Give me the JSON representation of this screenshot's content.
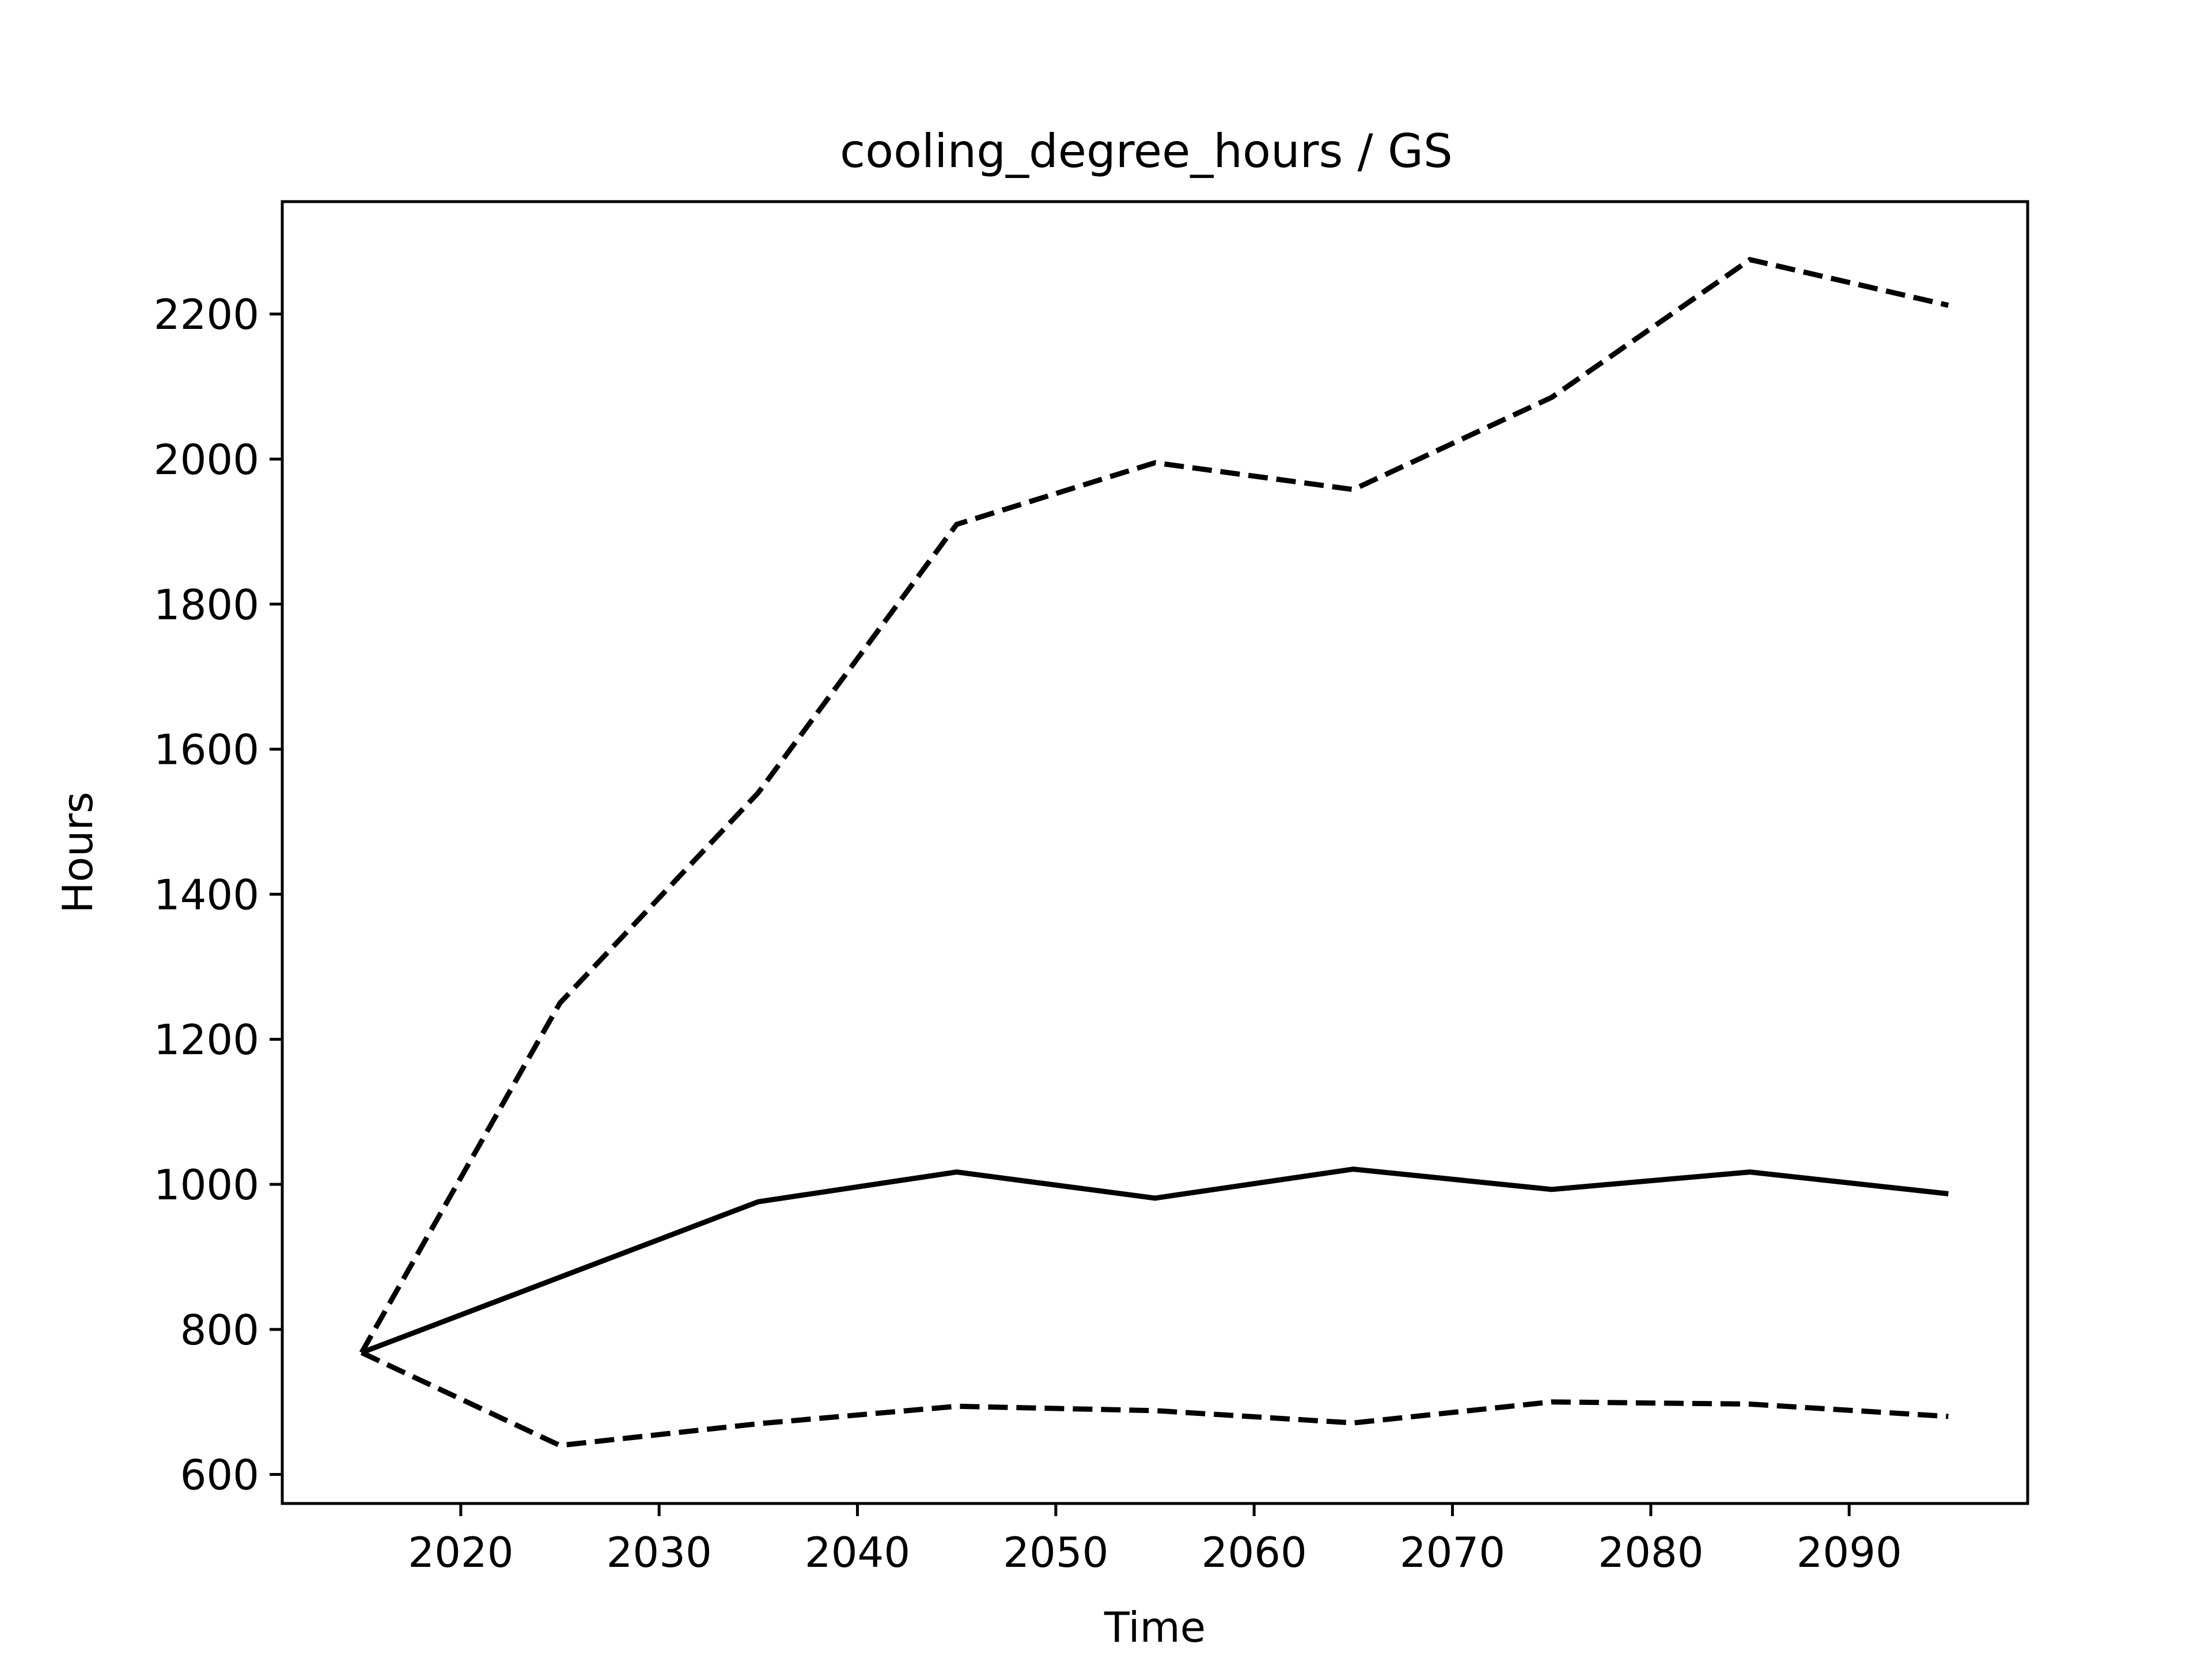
{
  "chart_data": {
    "type": "line",
    "title": "cooling_degree_hours / GS",
    "xlabel": "Time",
    "ylabel": "Hours",
    "xlim": [
      2011,
      2099
    ],
    "ylim": [
      560,
      2355
    ],
    "xticks": [
      2020,
      2030,
      2040,
      2050,
      2060,
      2070,
      2080,
      2090
    ],
    "yticks": [
      600,
      800,
      1000,
      1200,
      1400,
      1600,
      1800,
      2000,
      2200
    ],
    "grid": false,
    "legend": "none",
    "x": [
      2015,
      2025,
      2035,
      2045,
      2055,
      2065,
      2075,
      2085,
      2095
    ],
    "series": [
      {
        "style": "dashed",
        "color": "#000000",
        "values": [
          768,
          1250,
          1540,
          1910,
          1995,
          1958,
          2085,
          2275,
          2212
        ]
      },
      {
        "style": "solid",
        "color": "#000000",
        "values": [
          768,
          872,
          976,
          1017,
          981,
          1021,
          993,
          1017,
          987
        ]
      },
      {
        "style": "dashed",
        "color": "#000000",
        "values": [
          768,
          640,
          670,
          694,
          688,
          671,
          700,
          697,
          680
        ]
      }
    ]
  }
}
